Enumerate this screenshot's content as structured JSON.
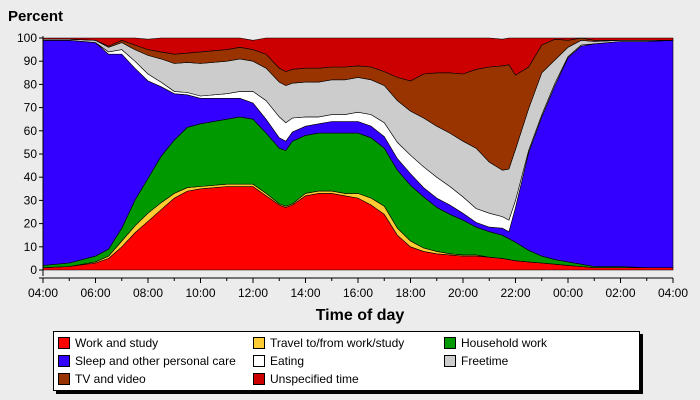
{
  "chart_data": {
    "type": "area",
    "stacked": true,
    "ylabel": "Percent",
    "xlabel": "Time of day",
    "ylim": [
      0,
      100
    ],
    "yticks": [
      0,
      10,
      20,
      30,
      40,
      50,
      60,
      70,
      80,
      90,
      100
    ],
    "xticks": [
      "04:00",
      "06:00",
      "08:00",
      "10:00",
      "12:00",
      "14:00",
      "16:00",
      "18:00",
      "20:00",
      "22:00",
      "00:00",
      "02:00",
      "04:00"
    ],
    "x": [
      "04:00",
      "05:00",
      "06:00",
      "06:30",
      "07:00",
      "07:30",
      "08:00",
      "08:30",
      "09:00",
      "09:30",
      "10:00",
      "11:00",
      "11:30",
      "12:00",
      "12:30",
      "13:00",
      "13:15",
      "13:30",
      "14:00",
      "14:30",
      "15:00",
      "15:30",
      "16:00",
      "16:30",
      "17:00",
      "17:30",
      "18:00",
      "18:30",
      "19:00",
      "19:30",
      "20:00",
      "20:30",
      "21:00",
      "21:30",
      "21:45",
      "22:00",
      "22:30",
      "23:00",
      "23:30",
      "00:00",
      "00:30",
      "01:00",
      "02:00",
      "03:00",
      "04:00"
    ],
    "series": [
      {
        "name": "Work and study",
        "color": "#ff0000",
        "values": [
          1,
          1.5,
          3,
          5,
          10,
          16,
          21,
          26,
          31,
          34,
          35,
          36,
          36,
          36,
          32,
          28,
          27,
          28,
          32,
          33,
          33,
          32,
          31,
          28,
          24,
          15,
          10,
          8,
          7,
          6.5,
          6,
          6,
          5.5,
          5,
          4.5,
          4,
          3.5,
          3,
          2.5,
          2,
          1.5,
          1,
          1,
          1,
          1
        ]
      },
      {
        "name": "Travel to/from work/study",
        "color": "#ffcc33",
        "values": [
          0,
          0,
          0.5,
          1,
          2.5,
          3,
          3.5,
          3,
          2,
          1.5,
          1,
          1,
          1,
          1,
          1,
          0.5,
          0.5,
          0.5,
          1,
          1,
          1,
          1,
          2,
          3,
          3.5,
          3,
          2.5,
          1.5,
          1,
          0.5,
          0.5,
          0.5,
          0,
          0,
          0,
          0,
          0,
          0,
          0,
          0,
          0,
          0,
          0,
          0,
          0
        ]
      },
      {
        "name": "Household work",
        "color": "#009900",
        "values": [
          1,
          1.5,
          2.5,
          3,
          5.5,
          11,
          15,
          20,
          23,
          26,
          27,
          28,
          29,
          28,
          26,
          24,
          24,
          27,
          25,
          25,
          25,
          26,
          26,
          26,
          25,
          25,
          24,
          22,
          19,
          17,
          15,
          12,
          11,
          10,
          9,
          8,
          5,
          3,
          2,
          1.5,
          1,
          0.5,
          0.5,
          0,
          0
        ]
      },
      {
        "name": "Sleep and other personal care",
        "color": "#3300ff",
        "values": [
          97,
          96,
          92,
          84,
          75,
          57,
          42,
          30,
          20,
          14,
          11,
          9,
          8,
          7,
          6,
          4.5,
          4,
          4,
          4,
          4,
          5,
          5,
          5,
          5,
          5,
          5,
          5,
          4,
          4,
          4,
          3,
          2,
          2,
          3,
          3,
          15,
          42,
          60,
          75,
          88,
          94,
          96,
          97,
          97.5,
          98
        ]
      },
      {
        "name": "Eating",
        "color": "#ffffff",
        "values": [
          0,
          0,
          0,
          1,
          2,
          3,
          3,
          2,
          1,
          1,
          1,
          2,
          3,
          5,
          8,
          9,
          8,
          6,
          4,
          3,
          3,
          3,
          4,
          5,
          6,
          7,
          8,
          9,
          9,
          8,
          7,
          6,
          6,
          5,
          5,
          3,
          1,
          1,
          1,
          0.5,
          0.5,
          0,
          0,
          0,
          0
        ]
      },
      {
        "name": "Freetime",
        "color": "#cccccc",
        "values": [
          0.5,
          0.5,
          1,
          2,
          3,
          5,
          8,
          10,
          12,
          13,
          14,
          14,
          14,
          13,
          14,
          15,
          16,
          15,
          15,
          15,
          15,
          15,
          15,
          15,
          16,
          18,
          19,
          21,
          22,
          23,
          24,
          26,
          22,
          20,
          22,
          22,
          18,
          18,
          10,
          4,
          2,
          1,
          0.5,
          0.5,
          0
        ]
      },
      {
        "name": "TV and video",
        "color": "#993300",
        "values": [
          0,
          0,
          0,
          0.5,
          1,
          2,
          2.5,
          3,
          4,
          4,
          5,
          5,
          5,
          5,
          6,
          6,
          6,
          6,
          6,
          6,
          5.5,
          5.5,
          5,
          5.5,
          6,
          10,
          13,
          19,
          23,
          26,
          29,
          34,
          41,
          45,
          45,
          32,
          18,
          12,
          9,
          3,
          1,
          0.5,
          0,
          0,
          0
        ]
      },
      {
        "name": "Unspecified time",
        "color": "#cc0000",
        "values": [
          0.5,
          0.5,
          1,
          3.5,
          1,
          3,
          4.5,
          6,
          7,
          6.5,
          6,
          5,
          4,
          4,
          7,
          13,
          14.5,
          13.5,
          13,
          13,
          12.5,
          12.5,
          12,
          12.5,
          14.5,
          17,
          18.5,
          15.5,
          15,
          15,
          15.5,
          13.5,
          12.5,
          11.5,
          11.5,
          16,
          12.5,
          3,
          0.5,
          1,
          0,
          1,
          1,
          1,
          1
        ]
      }
    ],
    "legend_position": "bottom",
    "grid": false
  }
}
